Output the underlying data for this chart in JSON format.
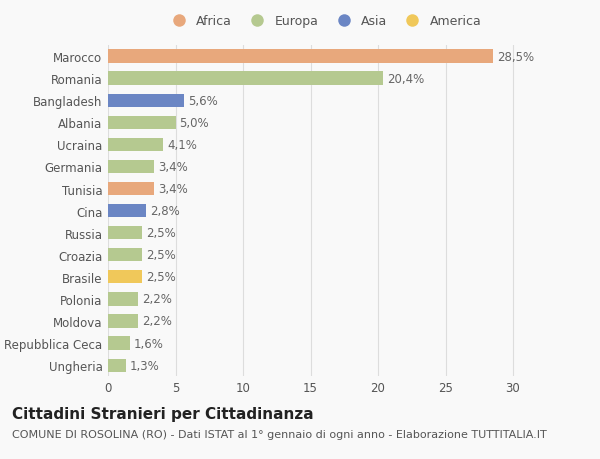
{
  "categories": [
    "Ungheria",
    "Repubblica Ceca",
    "Moldova",
    "Polonia",
    "Brasile",
    "Croazia",
    "Russia",
    "Cina",
    "Tunisia",
    "Germania",
    "Ucraina",
    "Albania",
    "Bangladesh",
    "Romania",
    "Marocco"
  ],
  "values": [
    1.3,
    1.6,
    2.2,
    2.2,
    2.5,
    2.5,
    2.5,
    2.8,
    3.4,
    3.4,
    4.1,
    5.0,
    5.6,
    20.4,
    28.5
  ],
  "labels": [
    "1,3%",
    "1,6%",
    "2,2%",
    "2,2%",
    "2,5%",
    "2,5%",
    "2,5%",
    "2,8%",
    "3,4%",
    "3,4%",
    "4,1%",
    "5,0%",
    "5,6%",
    "20,4%",
    "28,5%"
  ],
  "colors": [
    "#b5c990",
    "#b5c990",
    "#b5c990",
    "#b5c990",
    "#f0c85a",
    "#b5c990",
    "#b5c990",
    "#6b86c4",
    "#e8a87c",
    "#b5c990",
    "#b5c990",
    "#b5c990",
    "#6b86c4",
    "#b5c990",
    "#e8a87c"
  ],
  "legend": [
    {
      "label": "Africa",
      "color": "#e8a87c"
    },
    {
      "label": "Europa",
      "color": "#b5c990"
    },
    {
      "label": "Asia",
      "color": "#6b86c4"
    },
    {
      "label": "America",
      "color": "#f0c85a"
    }
  ],
  "title": "Cittadini Stranieri per Cittadinanza",
  "subtitle": "COMUNE DI ROSOLINA (RO) - Dati ISTAT al 1° gennaio di ogni anno - Elaborazione TUTTITALIA.IT",
  "xlim": [
    0,
    32
  ],
  "xticks": [
    0,
    5,
    10,
    15,
    20,
    25,
    30
  ],
  "background_color": "#f9f9f9",
  "bar_height": 0.6,
  "label_fontsize": 8.5,
  "tick_fontsize": 8.5,
  "title_fontsize": 11,
  "subtitle_fontsize": 8
}
